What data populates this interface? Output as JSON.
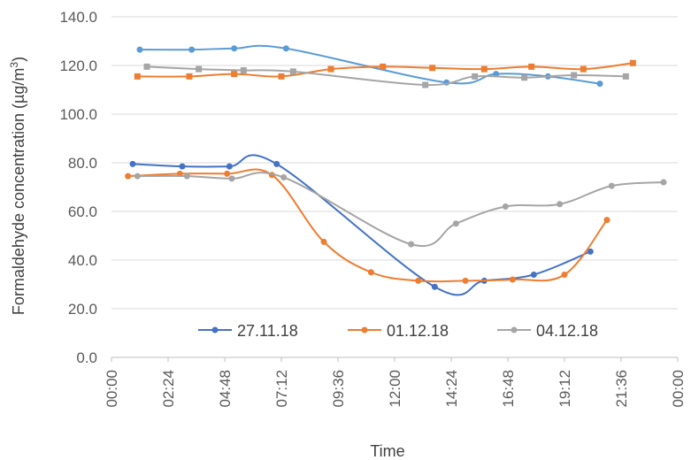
{
  "chart_data": {
    "type": "line",
    "xlabel": "Time",
    "ylabel_main": "Formaldehyde concentration (µg/m",
    "ylabel_sup": "3",
    "ylabel_end": ")",
    "xlim_hours": [
      0,
      24
    ],
    "ylim": [
      0,
      140
    ],
    "y_ticks": [
      "0.0",
      "20.0",
      "40.0",
      "60.0",
      "80.0",
      "100.0",
      "120.0",
      "140.0"
    ],
    "x_ticks": [
      "00:00",
      "02:24",
      "04:48",
      "07:12",
      "09:36",
      "12:00",
      "14:24",
      "16:48",
      "19:12",
      "21:36",
      "00:00"
    ],
    "grid": "horizontal",
    "legend_position": "bottom-inside",
    "series": [
      {
        "name": "27.11.18",
        "color": "#4472C4",
        "marker": "circle",
        "values": [
          [
            0.9,
            79.5
          ],
          [
            3.0,
            78.5
          ],
          [
            5.0,
            78.5
          ],
          [
            7.0,
            79.5
          ],
          [
            13.7,
            29.0
          ],
          [
            15.8,
            31.5
          ],
          [
            17.9,
            34.0
          ],
          [
            20.3,
            43.5
          ]
        ]
      },
      {
        "name": "01.12.18",
        "color": "#ED7D31",
        "marker": "circle",
        "values": [
          [
            0.7,
            74.5
          ],
          [
            2.9,
            75.5
          ],
          [
            4.9,
            75.5
          ],
          [
            6.8,
            75.0
          ],
          [
            9.0,
            47.5
          ],
          [
            11.0,
            35.0
          ],
          [
            13.0,
            31.5
          ],
          [
            15.0,
            31.5
          ],
          [
            17.0,
            32.0
          ],
          [
            19.2,
            34.0
          ],
          [
            21.0,
            56.5
          ]
        ]
      },
      {
        "name": "04.12.18",
        "color": "#A5A5A5",
        "marker": "circle",
        "values": [
          [
            1.1,
            74.5
          ],
          [
            3.2,
            74.5
          ],
          [
            5.1,
            73.5
          ],
          [
            7.3,
            74.0
          ],
          [
            12.7,
            46.5
          ],
          [
            14.6,
            55.0
          ],
          [
            16.7,
            62.0
          ],
          [
            19.0,
            63.0
          ],
          [
            21.2,
            70.5
          ],
          [
            23.4,
            72.0
          ]
        ]
      },
      {
        "name": "",
        "color": "#5B9BD5",
        "marker": "circle",
        "values": [
          [
            1.2,
            126.5
          ],
          [
            3.4,
            126.5
          ],
          [
            5.2,
            127.0
          ],
          [
            7.4,
            127.0
          ],
          [
            14.2,
            113.0
          ],
          [
            16.3,
            116.5
          ],
          [
            18.5,
            115.5
          ],
          [
            20.7,
            112.5
          ]
        ]
      },
      {
        "name": "",
        "color": "#ED7D31",
        "marker": "square",
        "values": [
          [
            1.1,
            115.5
          ],
          [
            3.3,
            115.5
          ],
          [
            5.2,
            116.5
          ],
          [
            7.2,
            115.5
          ],
          [
            9.3,
            118.5
          ],
          [
            11.5,
            119.5
          ],
          [
            13.6,
            119.0
          ],
          [
            15.8,
            118.5
          ],
          [
            17.8,
            119.5
          ],
          [
            20.0,
            118.5
          ],
          [
            22.1,
            121.0
          ]
        ]
      },
      {
        "name": "",
        "color": "#A5A5A5",
        "marker": "square",
        "values": [
          [
            1.5,
            119.5
          ],
          [
            3.7,
            118.5
          ],
          [
            5.6,
            118.0
          ],
          [
            7.7,
            117.5
          ],
          [
            13.3,
            112.0
          ],
          [
            15.4,
            115.5
          ],
          [
            17.5,
            115.0
          ],
          [
            19.6,
            116.0
          ],
          [
            21.8,
            115.5
          ]
        ]
      }
    ]
  }
}
